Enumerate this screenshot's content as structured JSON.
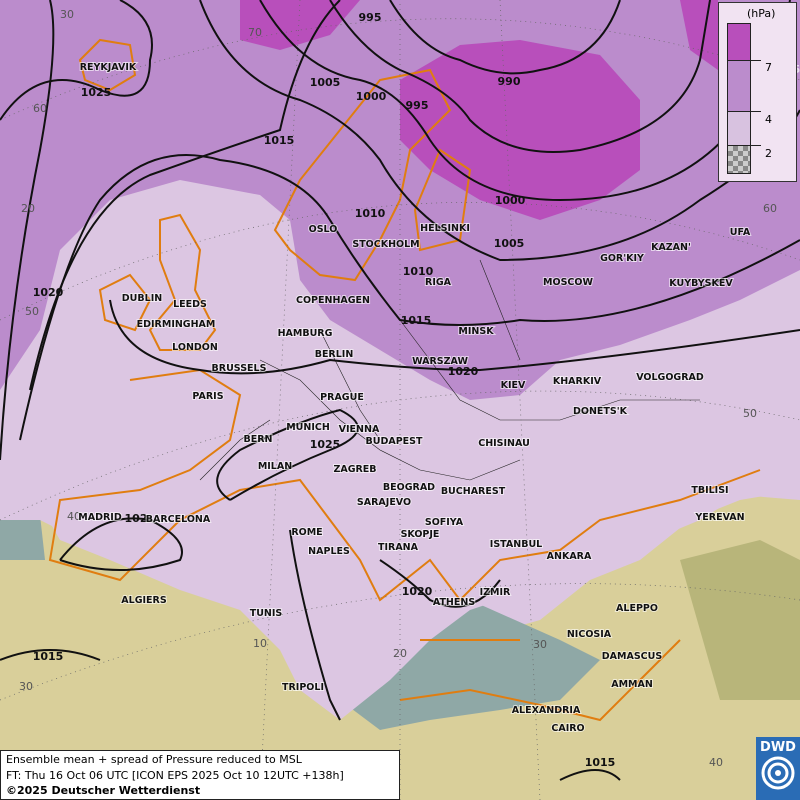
{
  "legend": {
    "unit": "(hPa)",
    "thresholds": [
      "7",
      "4",
      "2"
    ],
    "colors": {
      "high": "#b84fbb",
      "mid": "#bb8ccc",
      "low": "#d8c2e0",
      "none": "checkered"
    }
  },
  "caption": {
    "line1": "Ensemble mean + spread of Pressure reduced to MSL",
    "line2": "FT: Thu 16 Oct 06 UTC [ICON EPS 2025 Oct 10 12UTC +138h]",
    "copyright": "©2025 Deutscher Wetterdienst"
  },
  "logo": {
    "text": "DWD"
  },
  "cities": [
    "REYKJAVIK",
    "DUBLIN",
    "LEEDS",
    "EDIRMINGHAM",
    "LONDON",
    "OSLO",
    "STOCKHOLM",
    "HELSINKI",
    "COPENHAGEN",
    "RIGA",
    "MOSCOW",
    "GOR'KIY",
    "KAZAN'",
    "UFA",
    "KUYBYSKEV",
    "MINSK",
    "HAMBURG",
    "BERLIN",
    "WARSZAW",
    "KIEV",
    "KHARKIV",
    "VOLGOGRAD",
    "BRUSSELS",
    "PARIS",
    "PRAGUE",
    "VIENNA",
    "MUNICH",
    "BERN",
    "BUDAPEST",
    "CHISINAU",
    "DONETS'K",
    "MILAN",
    "ZAGREB",
    "BEOGRAD",
    "BUCHAREST",
    "TBILISI",
    "YEREVAN",
    "MADRID",
    "BARCELONA",
    "SARAJEVO",
    "SOFIYA",
    "SKOPJE",
    "ROME",
    "NAPLES",
    "TIRANA",
    "ISTANBUL",
    "ANKARA",
    "IZMIR",
    "ATHENS",
    "ALGIERS",
    "TUNIS",
    "ALEPPO",
    "NICOSIA",
    "DAMASCUS",
    "AMMAN",
    "TRIPOLI",
    "ALEXANDRIA",
    "CAIRO"
  ],
  "isobar_labels": [
    "995",
    "1005",
    "1000",
    "995",
    "990",
    "1015",
    "1025",
    "1010",
    "1000",
    "1005",
    "1010",
    "1015",
    "1020",
    "1020",
    "1025",
    "102",
    "1020",
    "1015",
    "1015",
    "1025"
  ],
  "graticule_labels": [
    "30",
    "70",
    "60",
    "20",
    "50",
    "40",
    "30",
    "10",
    "20",
    "30",
    "40",
    "60",
    "50"
  ]
}
